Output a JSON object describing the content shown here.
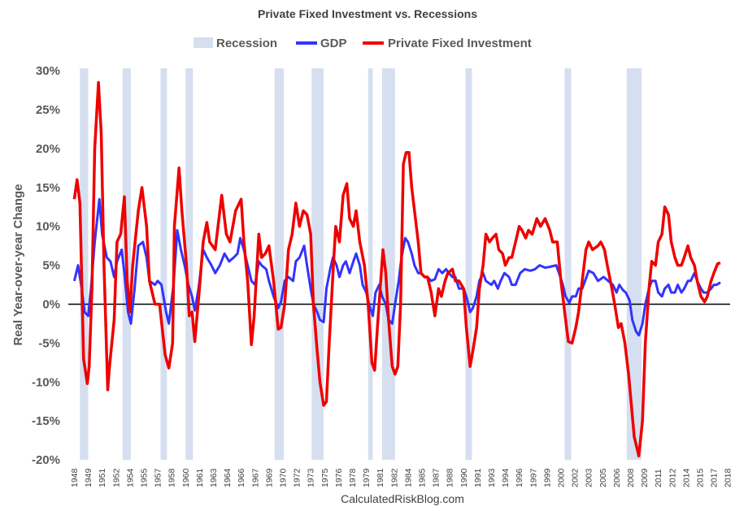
{
  "chart_data": {
    "type": "line",
    "title": "Private Fixed Investment vs. Recessions",
    "ylabel": "Real Year-over-year Change",
    "xlabel": "",
    "ylim": [
      -20,
      30
    ],
    "xlim": [
      1948,
      2018.25
    ],
    "yticks": [
      "30%",
      "25%",
      "20%",
      "15%",
      "10%",
      "5%",
      "0%",
      "-5%",
      "-10%",
      "-15%",
      "-20%"
    ],
    "ytick_values": [
      30,
      25,
      20,
      15,
      10,
      5,
      0,
      -5,
      -10,
      -15,
      -20
    ],
    "xticks": [
      "1948",
      "1949",
      "1951",
      "1952",
      "1954",
      "1955",
      "1957",
      "1958",
      "1960",
      "1961",
      "1963",
      "1964",
      "1966",
      "1967",
      "1969",
      "1970",
      "1972",
      "1973",
      "1975",
      "1976",
      "1978",
      "1979",
      "1981",
      "1982",
      "1984",
      "1985",
      "1987",
      "1988",
      "1990",
      "1991",
      "1993",
      "1994",
      "1996",
      "1997",
      "1999",
      "2000",
      "2002",
      "2003",
      "2005",
      "2006",
      "2008",
      "2009",
      "2011",
      "2012",
      "2014",
      "2015",
      "2017",
      "2018"
    ],
    "grid": false,
    "legend_position": "top",
    "legend": [
      "Recession",
      "GDP",
      "Private Fixed Investment"
    ],
    "source": "CalculatedRiskBlog.com",
    "colors": {
      "recession": "#d6dff0",
      "gdp": "#3333ff",
      "pfi": "#ee0000",
      "zero_line": "#000000"
    },
    "recessions": [
      [
        1948.9,
        1949.8
      ],
      [
        1953.5,
        1954.4
      ],
      [
        1957.6,
        1958.3
      ],
      [
        1960.3,
        1961.1
      ],
      [
        1969.9,
        1970.9
      ],
      [
        1973.9,
        1975.2
      ],
      [
        1980.0,
        1980.5
      ],
      [
        1981.5,
        1982.9
      ],
      [
        1990.5,
        1991.2
      ],
      [
        2001.2,
        2001.9
      ],
      [
        2007.9,
        2009.5
      ]
    ],
    "series": [
      {
        "name": "GDP",
        "x": [
          1948.3,
          1948.7,
          1949.1,
          1949.4,
          1949.8,
          1950.1,
          1950.5,
          1951.0,
          1951.3,
          1951.8,
          1952.2,
          1952.6,
          1952.9,
          1953.4,
          1953.7,
          1954.1,
          1954.4,
          1954.8,
          1955.2,
          1955.7,
          1956.1,
          1956.4,
          1957.0,
          1957.3,
          1957.7,
          1958.2,
          1958.5,
          1959.0,
          1959.4,
          1959.8,
          1960.2,
          1960.6,
          1961.0,
          1961.3,
          1961.7,
          1962.2,
          1962.6,
          1963.1,
          1963.5,
          1964.0,
          1964.5,
          1965.0,
          1965.5,
          1965.9,
          1966.2,
          1966.6,
          1967.0,
          1967.4,
          1967.8,
          1968.2,
          1968.5,
          1969.0,
          1969.3,
          1969.8,
          1970.3,
          1970.6,
          1971.0,
          1971.4,
          1971.9,
          1972.2,
          1972.6,
          1973.1,
          1973.4,
          1973.8,
          1974.1,
          1974.5,
          1974.8,
          1975.2,
          1975.5,
          1975.9,
          1976.2,
          1976.6,
          1976.9,
          1977.3,
          1977.6,
          1978.0,
          1978.4,
          1978.7,
          1979.1,
          1979.4,
          1979.8,
          1980.1,
          1980.5,
          1980.8,
          1981.2,
          1981.5,
          1981.9,
          1982.2,
          1982.6,
          1982.9,
          1983.3,
          1983.6,
          1984.0,
          1984.3,
          1984.7,
          1985.0,
          1985.4,
          1985.7,
          1986.1,
          1986.4,
          1986.8,
          1987.2,
          1987.6,
          1988.0,
          1988.4,
          1988.7,
          1989.1,
          1989.4,
          1989.8,
          1990.3,
          1990.6,
          1991.0,
          1991.3,
          1991.7,
          1992.0,
          1992.4,
          1992.7,
          1993.3,
          1993.6,
          1994.0,
          1994.3,
          1994.7,
          1995.2,
          1995.5,
          1995.9,
          1996.4,
          1996.9,
          1997.5,
          1998.0,
          1998.5,
          1999.1,
          1999.6,
          2000.3,
          2000.6,
          2001.0,
          2001.3,
          2001.7,
          2002.0,
          2002.4,
          2002.7,
          2003.1,
          2003.4,
          2003.8,
          2004.3,
          2004.8,
          2005.4,
          2005.9,
          2006.4,
          2006.8,
          2007.1,
          2007.5,
          2007.8,
          2008.2,
          2008.5,
          2008.9,
          2009.2,
          2009.6,
          2009.9,
          2010.3,
          2010.6,
          2011.0,
          2011.3,
          2011.7,
          2012.0,
          2012.4,
          2012.7,
          2013.1,
          2013.4,
          2013.8,
          2014.1,
          2014.5,
          2014.8,
          2015.2,
          2015.5,
          2015.9,
          2016.2,
          2016.6,
          2017.0,
          2017.3,
          2017.6,
          2018.0
        ],
        "y": [
          3,
          5,
          2,
          -1,
          -1.5,
          2,
          8,
          13.5,
          9,
          6,
          5.5,
          3.5,
          5.5,
          7,
          4,
          -1,
          -2.5,
          2,
          7.5,
          8,
          6,
          3,
          2.5,
          3,
          2.5,
          -1,
          -2.5,
          2.5,
          9.5,
          7,
          5,
          2.5,
          1,
          -0.8,
          2,
          7,
          6,
          5,
          4,
          5,
          6.5,
          5.5,
          6,
          6.5,
          8.5,
          7,
          5,
          3,
          2.5,
          5.5,
          5,
          4.5,
          3,
          1,
          -0.5,
          0.3,
          3,
          3.5,
          3,
          5.5,
          6,
          7.5,
          5,
          2,
          0,
          -1,
          -2,
          -2.3,
          2,
          4.5,
          6,
          5,
          3.5,
          5,
          5.5,
          4,
          5.5,
          6.5,
          5,
          2.5,
          1.5,
          0,
          -1.5,
          1.5,
          2.5,
          1,
          0,
          -2,
          -2.5,
          0,
          3,
          6,
          8.5,
          8,
          6.5,
          5,
          4,
          4,
          3.5,
          3.5,
          3,
          3.2,
          4.5,
          4,
          4.5,
          4,
          3.5,
          3.5,
          2,
          2,
          1,
          -1,
          -0.5,
          1,
          3,
          4,
          3,
          2.5,
          3,
          2,
          3,
          4,
          3.5,
          2.5,
          2.5,
          4,
          4.5,
          4.3,
          4.5,
          5,
          4.7,
          4.8,
          5,
          4,
          2.5,
          1,
          0.2,
          1,
          1,
          2,
          2,
          3,
          4.3,
          4,
          3,
          3.5,
          3,
          2.5,
          1.5,
          2.5,
          1.8,
          1.5,
          0.5,
          -2,
          -3.5,
          -4,
          -2.5,
          0,
          2,
          3,
          3,
          1.5,
          1,
          2,
          2.5,
          1.5,
          1.5,
          2.5,
          1.5,
          2,
          3,
          3,
          4,
          3,
          2,
          1.5,
          1.5,
          2,
          2.5,
          2.5,
          2.8
        ]
      },
      {
        "name": "Private Fixed Investment",
        "x": [
          1948.3,
          1948.6,
          1948.9,
          1949.3,
          1949.7,
          1949.9,
          1950.2,
          1950.5,
          1950.9,
          1951.2,
          1951.5,
          1951.9,
          1952.1,
          1952.6,
          1952.9,
          1953.3,
          1953.7,
          1954.0,
          1954.3,
          1954.6,
          1955.2,
          1955.6,
          1956.1,
          1956.4,
          1957.0,
          1957.5,
          1958.1,
          1958.5,
          1958.9,
          1959.1,
          1959.6,
          1959.9,
          1960.4,
          1960.7,
          1961.0,
          1961.3,
          1961.8,
          1962.2,
          1962.6,
          1962.9,
          1963.5,
          1964.2,
          1964.7,
          1965.1,
          1965.7,
          1966.3,
          1966.6,
          1967.0,
          1967.4,
          1967.7,
          1968.2,
          1968.5,
          1968.9,
          1969.3,
          1969.8,
          1970.3,
          1970.6,
          1971.0,
          1971.4,
          1971.8,
          1972.2,
          1972.6,
          1973.0,
          1973.4,
          1973.8,
          1974.1,
          1974.5,
          1974.8,
          1975.2,
          1975.5,
          1975.8,
          1976.3,
          1976.5,
          1976.9,
          1977.3,
          1977.7,
          1978.0,
          1978.4,
          1978.7,
          1979.1,
          1979.6,
          1980.0,
          1980.4,
          1980.7,
          1981.0,
          1981.3,
          1981.6,
          1981.9,
          1982.2,
          1982.6,
          1982.9,
          1983.2,
          1983.5,
          1983.8,
          1984.1,
          1984.4,
          1984.7,
          1985.0,
          1985.4,
          1985.7,
          1986.1,
          1986.4,
          1986.8,
          1987.2,
          1987.6,
          1987.9,
          1988.3,
          1988.6,
          1989.1,
          1989.4,
          1989.8,
          1990.3,
          1990.6,
          1991.0,
          1991.3,
          1991.7,
          1992.0,
          1992.4,
          1992.7,
          1993.1,
          1993.4,
          1993.8,
          1994.1,
          1994.5,
          1994.8,
          1995.2,
          1995.5,
          1995.9,
          1996.3,
          1996.6,
          1997.0,
          1997.3,
          1997.7,
          1998.2,
          1998.6,
          1999.1,
          1999.6,
          1999.9,
          2000.4,
          2000.8,
          2001.2,
          2001.6,
          2002.0,
          2002.4,
          2002.7,
          2003.1,
          2003.5,
          2003.8,
          2004.2,
          2004.8,
          2005.1,
          2005.5,
          2005.8,
          2006.3,
          2006.6,
          2007.0,
          2007.3,
          2007.7,
          2008.1,
          2008.4,
          2008.7,
          2009.2,
          2009.6,
          2009.9,
          2010.3,
          2010.6,
          2011.0,
          2011.3,
          2011.7,
          2012.0,
          2012.4,
          2012.7,
          2013.1,
          2013.4,
          2013.8,
          2014.1,
          2014.5,
          2014.8,
          2015.2,
          2015.5,
          2015.9,
          2016.3,
          2016.6,
          2017.0,
          2017.3,
          2017.7,
          2018.0
        ],
        "y": [
          13.5,
          16,
          13,
          -7,
          -10.2,
          -8,
          2,
          20,
          28.5,
          22,
          5,
          -11,
          -8,
          -2,
          8,
          9,
          13.8,
          3,
          -1,
          5,
          12,
          15,
          10,
          3,
          0,
          0,
          -6.5,
          -8.2,
          -5,
          10,
          17.5,
          12,
          5,
          -1.5,
          -1,
          -4.8,
          2,
          8,
          10.5,
          8,
          7,
          14,
          9,
          8,
          12,
          13.5,
          8,
          3,
          -5.2,
          -1.5,
          9,
          6,
          6.5,
          7.5,
          3,
          -3.2,
          -3,
          0,
          7,
          9,
          13,
          10,
          12,
          11.5,
          9,
          0,
          -6,
          -10,
          -13,
          -12.5,
          -5,
          6,
          10,
          8,
          14,
          15.5,
          11,
          10,
          12,
          8,
          5,
          0,
          -7.5,
          -8.5,
          -3,
          2,
          7,
          4,
          -2,
          -8,
          -9,
          -8,
          0,
          18,
          19.5,
          19.5,
          15,
          12,
          8,
          4,
          3.5,
          3.5,
          1.5,
          -1.5,
          2,
          1,
          3,
          4,
          4.5,
          3,
          3,
          2,
          -3,
          -8,
          -6,
          -3,
          2,
          5,
          9,
          8,
          8.5,
          9,
          7,
          6.5,
          5,
          6,
          6,
          8,
          10,
          9.5,
          8.5,
          9.5,
          9,
          11,
          10,
          11,
          9.5,
          8,
          8,
          3,
          -1,
          -4.8,
          -5,
          -3,
          -1,
          3,
          7,
          8,
          7,
          7.5,
          8,
          7,
          5,
          2,
          0,
          -3,
          -2.5,
          -5,
          -9,
          -13,
          -17,
          -19.5,
          -15,
          -5,
          2,
          5.5,
          5,
          8,
          9,
          12.5,
          11.5,
          8,
          6,
          5,
          5,
          6,
          7.5,
          6,
          5,
          3,
          1,
          0.3,
          1,
          3,
          4,
          5.2,
          5.3
        ]
      }
    ]
  }
}
